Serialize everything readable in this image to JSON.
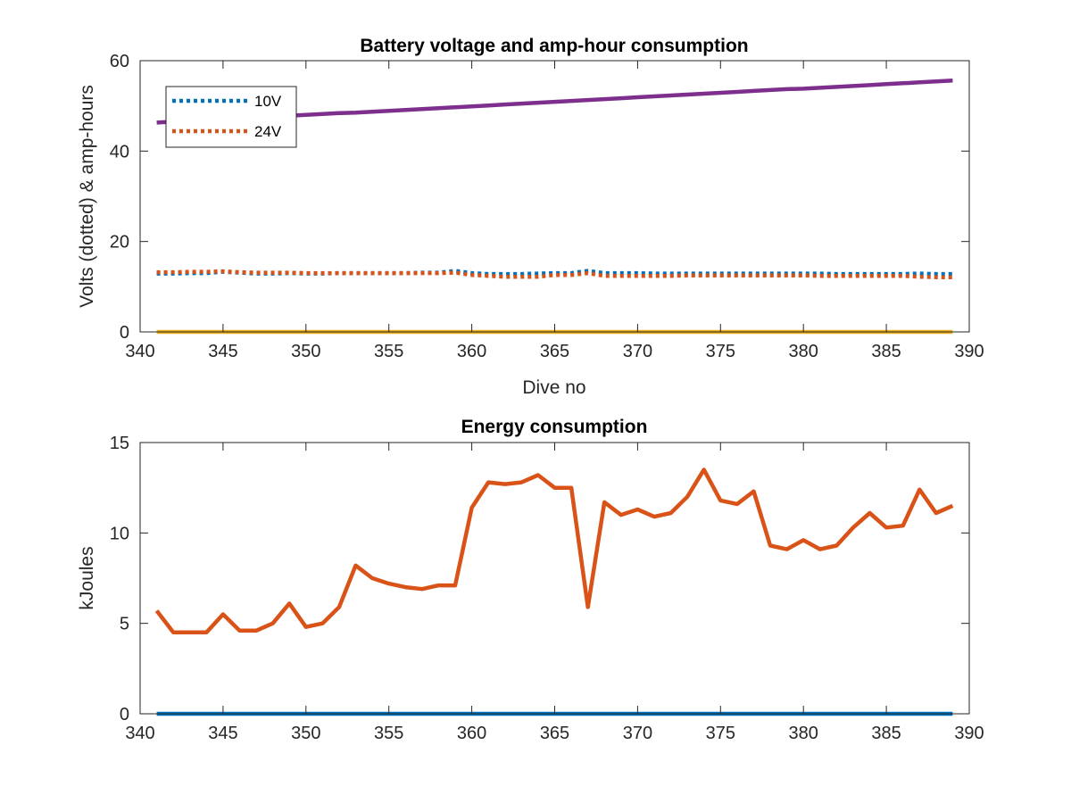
{
  "chart_data": [
    {
      "type": "line",
      "title": "Battery voltage and amp-hour consumption",
      "xlabel": "Dive no",
      "ylabel": "Volts (dotted) & amp-hours",
      "xlim": [
        340,
        390
      ],
      "ylim": [
        0,
        60
      ],
      "xticks": [
        340,
        345,
        350,
        355,
        360,
        365,
        370,
        375,
        380,
        385,
        390
      ],
      "yticks": [
        0,
        20,
        40,
        60
      ],
      "grid": false,
      "legend_position": "top-left",
      "x": [
        341,
        342,
        343,
        344,
        345,
        346,
        347,
        348,
        349,
        350,
        351,
        352,
        353,
        354,
        355,
        356,
        357,
        358,
        359,
        360,
        361,
        362,
        363,
        364,
        365,
        366,
        367,
        368,
        369,
        370,
        371,
        372,
        373,
        374,
        375,
        376,
        377,
        378,
        379,
        380,
        381,
        382,
        383,
        384,
        385,
        386,
        387,
        388,
        389
      ],
      "series": [
        {
          "name": "10V",
          "style": "dotted",
          "color": "#0072bd",
          "values": [
            12.9,
            12.9,
            13.0,
            13.0,
            13.3,
            13.1,
            12.9,
            12.9,
            13.0,
            12.9,
            12.9,
            13.0,
            13.0,
            13.0,
            13.0,
            13.0,
            13.1,
            13.1,
            13.5,
            13.0,
            12.8,
            12.8,
            12.8,
            12.9,
            13.0,
            13.0,
            13.5,
            13.0,
            13.0,
            13.0,
            12.9,
            12.9,
            12.9,
            12.9,
            12.9,
            12.9,
            12.9,
            12.9,
            12.9,
            12.9,
            12.9,
            12.8,
            12.8,
            12.8,
            12.8,
            12.8,
            12.9,
            12.8,
            12.8
          ]
        },
        {
          "name": "24V",
          "style": "dotted",
          "color": "#d95319",
          "values": [
            13.2,
            13.2,
            13.3,
            13.3,
            13.4,
            13.2,
            13.1,
            13.1,
            13.1,
            13.0,
            13.0,
            13.0,
            13.0,
            13.0,
            13.0,
            13.0,
            13.0,
            13.0,
            13.1,
            12.6,
            12.4,
            12.2,
            12.2,
            12.2,
            12.6,
            12.6,
            13.0,
            12.4,
            12.4,
            12.4,
            12.4,
            12.4,
            12.5,
            12.5,
            12.5,
            12.5,
            12.5,
            12.5,
            12.5,
            12.5,
            12.4,
            12.4,
            12.4,
            12.4,
            12.4,
            12.4,
            12.2,
            12.1,
            12.1
          ]
        },
        {
          "style": "solid",
          "color": "#edb120",
          "values": [
            0,
            0,
            0,
            0,
            0,
            0,
            0,
            0,
            0,
            0,
            0,
            0,
            0,
            0,
            0,
            0,
            0,
            0,
            0,
            0,
            0,
            0,
            0,
            0,
            0,
            0,
            0,
            0,
            0,
            0,
            0,
            0,
            0,
            0,
            0,
            0,
            0,
            0,
            0,
            0,
            0,
            0,
            0,
            0,
            0,
            0,
            0,
            0,
            0
          ]
        },
        {
          "style": "solid",
          "color": "#7e2f8e",
          "values": [
            46.3,
            46.5,
            46.7,
            46.9,
            47.1,
            47.2,
            47.4,
            47.6,
            47.8,
            48.0,
            48.2,
            48.4,
            48.5,
            48.7,
            48.9,
            49.1,
            49.3,
            49.5,
            49.7,
            49.9,
            50.1,
            50.3,
            50.5,
            50.7,
            50.9,
            51.1,
            51.3,
            51.5,
            51.7,
            51.9,
            52.1,
            52.3,
            52.5,
            52.7,
            52.9,
            53.1,
            53.3,
            53.5,
            53.7,
            53.8,
            54.0,
            54.2,
            54.4,
            54.6,
            54.8,
            55.0,
            55.2,
            55.4,
            55.6
          ]
        }
      ]
    },
    {
      "type": "line",
      "title": "Energy consumption",
      "xlabel": "",
      "ylabel": "kJoules",
      "xlim": [
        340,
        390
      ],
      "ylim": [
        0,
        15
      ],
      "xticks": [
        340,
        345,
        350,
        355,
        360,
        365,
        370,
        375,
        380,
        385,
        390
      ],
      "yticks": [
        0,
        5,
        10,
        15
      ],
      "grid": false,
      "x": [
        341,
        342,
        343,
        344,
        345,
        346,
        347,
        348,
        349,
        350,
        351,
        352,
        353,
        354,
        355,
        356,
        357,
        358,
        359,
        360,
        361,
        362,
        363,
        364,
        365,
        366,
        367,
        368,
        369,
        370,
        371,
        372,
        373,
        374,
        375,
        376,
        377,
        378,
        379,
        380,
        381,
        382,
        383,
        384,
        385,
        386,
        387,
        388,
        389
      ],
      "series": [
        {
          "style": "solid",
          "color": "#d95319",
          "values": [
            5.7,
            4.5,
            4.5,
            4.5,
            5.5,
            4.6,
            4.6,
            5.0,
            6.1,
            4.8,
            5.0,
            5.9,
            8.2,
            7.5,
            7.2,
            7.0,
            6.9,
            7.1,
            7.1,
            11.4,
            12.8,
            12.7,
            12.8,
            13.2,
            12.5,
            12.5,
            5.9,
            11.7,
            11.0,
            11.3,
            10.9,
            11.1,
            12.0,
            13.5,
            11.8,
            11.6,
            12.3,
            9.3,
            9.1,
            9.6,
            9.1,
            9.3,
            10.3,
            11.1,
            10.3,
            10.4,
            12.4,
            11.1,
            11.5
          ]
        },
        {
          "style": "solid",
          "color": "#0072bd",
          "values": [
            0,
            0,
            0,
            0,
            0,
            0,
            0,
            0,
            0,
            0,
            0,
            0,
            0,
            0,
            0,
            0,
            0,
            0,
            0,
            0,
            0,
            0,
            0,
            0,
            0,
            0,
            0,
            0,
            0,
            0,
            0,
            0,
            0,
            0,
            0,
            0,
            0,
            0,
            0,
            0,
            0,
            0,
            0,
            0,
            0,
            0,
            0,
            0,
            0
          ]
        }
      ]
    }
  ]
}
